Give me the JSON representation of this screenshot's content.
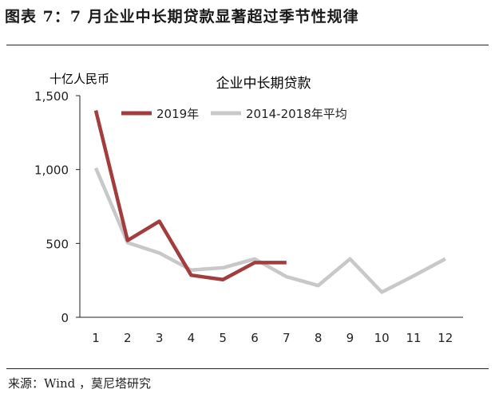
{
  "figure": {
    "title": "图表 7：7 月企业中长期贷款显著超过季节性规律",
    "source": "来源：Wind ，莫尼塔研究"
  },
  "chart_data": {
    "type": "line",
    "title": "企业中长期贷款",
    "unit": "十亿人民币",
    "categories": [
      "1",
      "2",
      "3",
      "4",
      "5",
      "6",
      "7",
      "8",
      "9",
      "10",
      "11",
      "12"
    ],
    "ylim": [
      0,
      1500
    ],
    "yticks": [
      "0",
      "500",
      "1,000",
      "1,500"
    ],
    "ytick_values": [
      0,
      500,
      1000,
      1500
    ],
    "grid": false,
    "legend_position": "top",
    "series": [
      {
        "name": "2019年",
        "color": "#a33d3d",
        "values": [
          1400,
          520,
          650,
          285,
          255,
          370,
          370,
          null,
          null,
          null,
          null,
          null
        ]
      },
      {
        "name": "2014-2018年平均",
        "color": "#c8c8c8",
        "values": [
          1010,
          505,
          435,
          320,
          335,
          395,
          275,
          215,
          395,
          170,
          280,
          395
        ]
      }
    ]
  }
}
